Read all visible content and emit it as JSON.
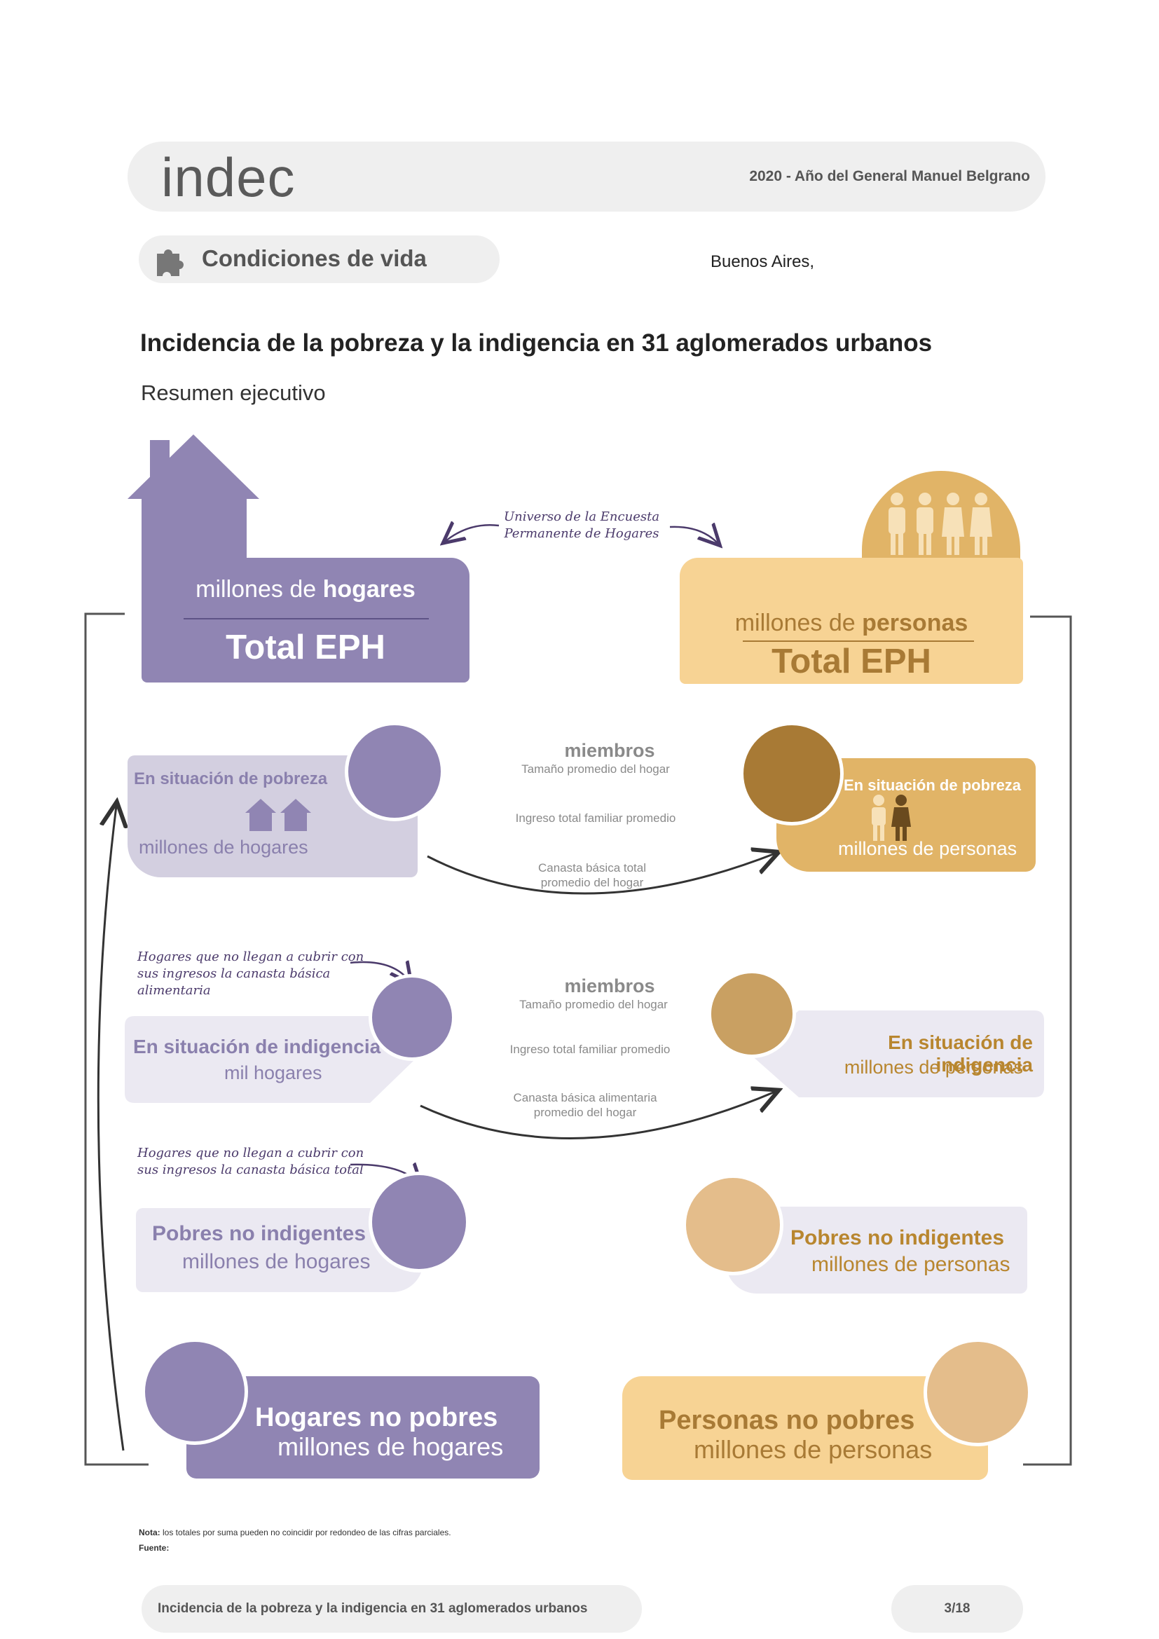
{
  "header": {
    "logo": "indec",
    "year_text": "2020 - Año del General Manuel Belgrano"
  },
  "section": {
    "label": "Condiciones de vida",
    "city": "Buenos Aires,"
  },
  "title": "Incidencia de la pobreza y la indigencia en 31 aglomerados urbanos",
  "subtitle": "Resumen ejecutivo",
  "universe_note": "Universo de la Encuesta\nPermanente de Hogares",
  "hogares_total": {
    "unit_prefix": "millones de ",
    "unit_bold": "hogares",
    "label": "Total EPH"
  },
  "personas_total": {
    "unit_prefix": "millones de ",
    "unit_bold": "personas",
    "label": "Total EPH"
  },
  "pobreza": {
    "hogares_title": "En situación de pobreza",
    "hogares_unit": "millones de hogares",
    "personas_title": "En situación de pobreza",
    "personas_unit": "millones de personas",
    "members_label": "miembros",
    "members_desc": "Tamaño promedio del hogar",
    "income_desc": "Ingreso total familiar promedio",
    "basket_desc": "Canasta básica total\npromedio del hogar"
  },
  "indigencia": {
    "note": "Hogares que no llegan a cubrir con\nsus ingresos la canasta básica\nalimentaria",
    "hogares_title": "En situación de indigencia",
    "hogares_unit": "mil hogares",
    "personas_title": "En situación de indigencia",
    "personas_unit": "millones de personas",
    "members_label": "miembros",
    "members_desc": "Tamaño promedio del hogar",
    "income_desc": "Ingreso total familiar promedio",
    "basket_desc": "Canasta básica alimentaria\npromedio del hogar"
  },
  "pobres_no_indigentes": {
    "note": "Hogares que no llegan a cubrir con\nsus ingresos la canasta básica total",
    "hogares_title": "Pobres no indigentes",
    "hogares_unit": "millones de hogares",
    "personas_title": "Pobres no indigentes",
    "personas_unit": "millones de personas"
  },
  "no_pobres": {
    "hogares_title": "Hogares no pobres",
    "hogares_unit": "millones de hogares",
    "personas_title": "Personas no pobres",
    "personas_unit": "millones de personas"
  },
  "notes": {
    "nota_label": "Nota:",
    "nota_text": " los totales por suma pueden no coincidir por redondeo de las cifras parciales.",
    "fuente_label": "Fuente:"
  },
  "footer": {
    "title": "Incidencia de la pobreza y la indigencia en 31 aglomerados urbanos",
    "page": "3/18"
  },
  "colors": {
    "purple": "#9085b3",
    "purple_light": "#d3cfe0",
    "purple_pale": "#ebe9f2",
    "gold": "#f7d394",
    "gold_dark": "#e1b467",
    "brown": "#a87a35",
    "tan": "#c9a062",
    "peach": "#e4bd8b"
  }
}
